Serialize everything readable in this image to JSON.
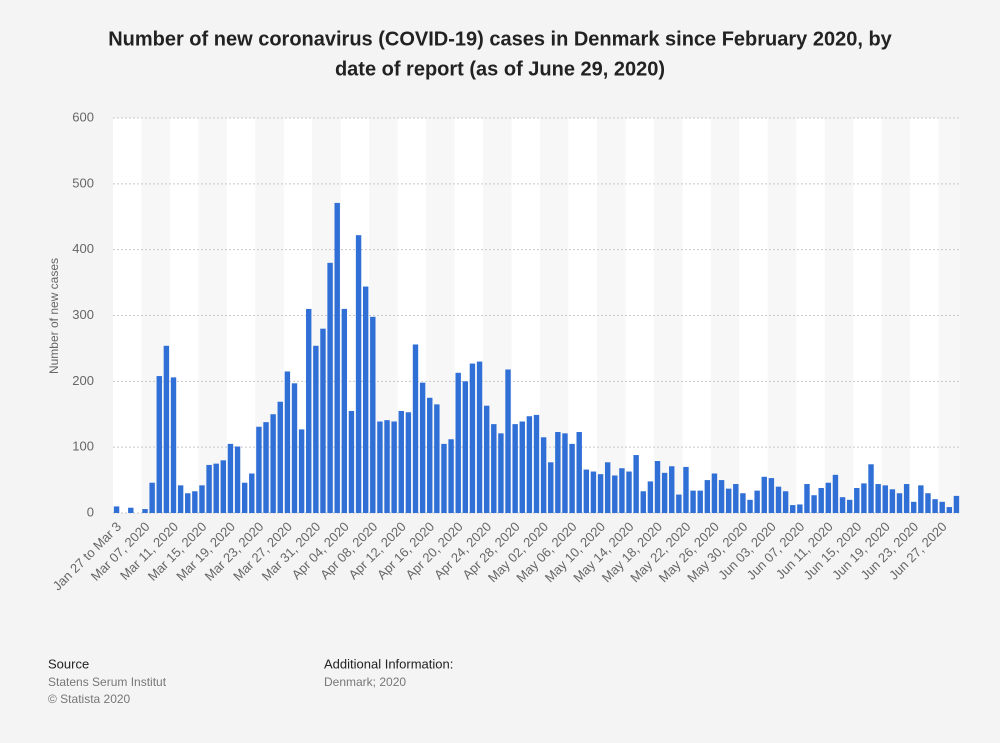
{
  "chart_data": {
    "type": "bar",
    "title": "Number of new coronavirus (COVID-19) cases in Denmark since February 2020, by",
    "title_line2": "date of report (as of June 29, 2020)",
    "y_label": "Number of new cases",
    "categories": [
      "Jan 27 to Mar 3",
      null,
      null,
      null,
      "Mar 07, 2020",
      null,
      null,
      null,
      "Mar 11, 2020",
      null,
      null,
      null,
      "Mar 15, 2020",
      null,
      null,
      null,
      "Mar 19, 2020",
      null,
      null,
      null,
      "Mar 23, 2020",
      null,
      null,
      null,
      "Mar 27, 2020",
      null,
      null,
      null,
      "Mar 31, 2020",
      null,
      null,
      null,
      "Apr 04, 2020",
      null,
      null,
      null,
      "Apr 08, 2020",
      null,
      null,
      null,
      "Apr 12, 2020",
      null,
      null,
      null,
      "Apr 16, 2020",
      null,
      null,
      null,
      "Apr 20, 2020",
      null,
      null,
      null,
      "Apr 24, 2020",
      null,
      null,
      null,
      "Apr 28, 2020",
      null,
      null,
      null,
      "May 02, 2020",
      null,
      null,
      null,
      "May 06, 2020",
      null,
      null,
      null,
      "May 10, 2020",
      null,
      null,
      null,
      "May 14, 2020",
      null,
      null,
      null,
      "May 18, 2020",
      null,
      null,
      null,
      "May 22, 2020",
      null,
      null,
      null,
      "May 26, 2020",
      null,
      null,
      null,
      "May 30, 2020",
      null,
      null,
      null,
      "Jun 03, 2020",
      null,
      null,
      null,
      "Jun 07, 2020",
      null,
      null,
      null,
      "Jun 11, 2020",
      null,
      null,
      null,
      "Jun 15, 2020",
      null,
      null,
      null,
      "Jun 19, 2020",
      null,
      null,
      null,
      "Jun 23, 2020",
      null,
      null,
      null,
      "Jun 27, 2020",
      null,
      null
    ],
    "values": [
      10,
      0,
      8,
      0,
      6,
      46,
      208,
      254,
      206,
      42,
      30,
      33,
      42,
      73,
      75,
      80,
      105,
      101,
      46,
      60,
      131,
      138,
      150,
      169,
      215,
      197,
      127,
      310,
      254,
      280,
      380,
      471,
      310,
      155,
      422,
      344,
      298,
      139,
      141,
      139,
      155,
      153,
      256,
      198,
      175,
      165,
      105,
      112,
      213,
      200,
      227,
      230,
      163,
      135,
      121,
      218,
      135,
      139,
      147,
      149,
      115,
      77,
      123,
      121,
      105,
      123,
      66,
      63,
      59,
      77,
      57,
      68,
      63,
      88,
      33,
      48,
      79,
      61,
      71,
      28,
      70,
      34,
      34,
      50,
      60,
      50,
      37,
      44,
      30,
      20,
      34,
      55,
      53,
      40,
      33,
      12,
      13,
      44,
      27,
      38,
      46,
      58,
      24,
      20,
      38,
      45,
      74,
      44,
      42,
      36,
      30,
      44,
      17,
      42,
      30,
      21,
      17,
      9,
      26
    ],
    "color": "#2f6fd6",
    "ylim": [
      0,
      600
    ],
    "yticks": [
      0,
      100,
      200,
      300,
      400,
      500,
      600
    ],
    "grid": true
  },
  "footer": {
    "source_heading": "Source",
    "source": "Statens Serum Institut",
    "copyright": "© Statista 2020",
    "info_heading": "Additional Information:",
    "info": "Denmark; 2020"
  }
}
